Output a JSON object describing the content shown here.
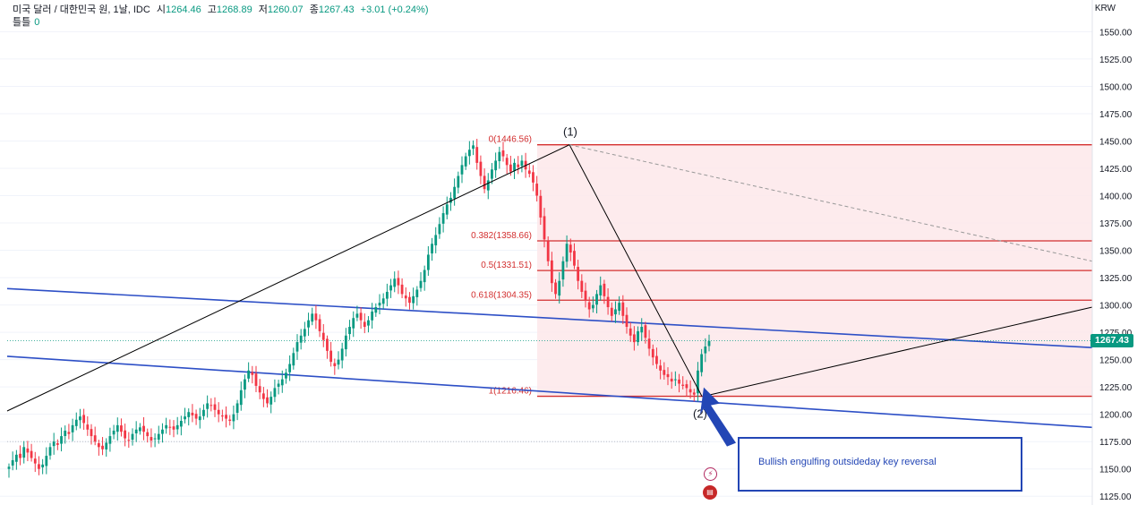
{
  "legend": {
    "symbol": "미국 달러 / 대한민국 원, 1날, IDC",
    "o_label": "시",
    "o_value": "1264.46",
    "h_label": "고",
    "h_value": "1268.89",
    "l_label": "저",
    "l_value": "1260.07",
    "c_label": "종",
    "c_value": "1267.43",
    "change": "+3.01 (+0.24%)",
    "volume_label": "틀틀",
    "volume_value": "0"
  },
  "axis": {
    "currency": "KRW"
  },
  "price_tag": "1267.43",
  "wave_labels": {
    "wave1": "(1)",
    "wave2": "(2)"
  },
  "annotation": {
    "text": "Bullish engulfing outsideday key reversal"
  },
  "event_icons": [
    {
      "name": "lightning-icon",
      "glyph": "⚡",
      "color": "#b2285f"
    },
    {
      "name": "us-flag-icon",
      "glyph": "🇺🇸",
      "color": "#c62828"
    }
  ],
  "colors": {
    "up": "#089981",
    "down": "#f23645",
    "fib_line": "#d32f2f",
    "fib_zone": "#fde7ea",
    "channel": "#2d4fc6",
    "trend": "#000000"
  },
  "chart_data": {
    "type": "candlestick",
    "y_ticks": [
      1125,
      1150,
      1175,
      1200,
      1225,
      1250,
      1275,
      1300,
      1325,
      1350,
      1375,
      1400,
      1425,
      1450,
      1475,
      1500,
      1525,
      1550
    ],
    "ylim": [
      1117,
      1579
    ],
    "last_price": 1267.43,
    "fib_levels": [
      {
        "ratio": "0",
        "price": 1446.56,
        "label": "0(1446.56)"
      },
      {
        "ratio": "0.382",
        "price": 1358.66,
        "label": "0.382(1358.66)"
      },
      {
        "ratio": "0.5",
        "price": 1331.51,
        "label": "0.5(1331.51)"
      },
      {
        "ratio": "0.618",
        "price": 1304.35,
        "label": "0.618(1304.35)"
      },
      {
        "ratio": "1",
        "price": 1216.46,
        "label": "1(1216.46)"
      }
    ],
    "trend_path": [
      1203,
      1446.56,
      1216.46,
      1298
    ],
    "channel_upper": [
      1315,
      1261
    ],
    "channel_lower": [
      1253,
      1188
    ],
    "projection_target": 1340,
    "close_series": [
      1152,
      1158,
      1163,
      1160,
      1170,
      1165,
      1160,
      1155,
      1150,
      1154,
      1162,
      1170,
      1175,
      1172,
      1180,
      1185,
      1182,
      1190,
      1195,
      1198,
      1192,
      1186,
      1180,
      1175,
      1170,
      1168,
      1174,
      1180,
      1185,
      1190,
      1184,
      1178,
      1176,
      1182,
      1186,
      1188,
      1184,
      1180,
      1176,
      1178,
      1182,
      1186,
      1190,
      1188,
      1186,
      1190,
      1194,
      1198,
      1202,
      1199,
      1196,
      1198,
      1204,
      1210,
      1208,
      1204,
      1200,
      1198,
      1196,
      1194,
      1200,
      1210,
      1222,
      1232,
      1240,
      1236,
      1226,
      1220,
      1214,
      1210,
      1216,
      1224,
      1228,
      1232,
      1238,
      1246,
      1256,
      1266,
      1272,
      1278,
      1286,
      1292,
      1286,
      1276,
      1268,
      1258,
      1248,
      1244,
      1250,
      1260,
      1272,
      1280,
      1288,
      1292,
      1286,
      1280,
      1286,
      1294,
      1298,
      1302,
      1306,
      1312,
      1318,
      1324,
      1318,
      1310,
      1306,
      1302,
      1308,
      1314,
      1322,
      1332,
      1346,
      1356,
      1364,
      1374,
      1384,
      1392,
      1398,
      1408,
      1418,
      1428,
      1436,
      1442,
      1446,
      1430,
      1418,
      1406,
      1414,
      1424,
      1432,
      1440,
      1436,
      1428,
      1422,
      1430,
      1426,
      1432,
      1424,
      1420,
      1412,
      1400,
      1380,
      1360,
      1340,
      1320,
      1310,
      1322,
      1340,
      1356,
      1348,
      1336,
      1322,
      1312,
      1304,
      1296,
      1300,
      1310,
      1318,
      1308,
      1298,
      1290,
      1296,
      1302,
      1290,
      1280,
      1272,
      1266,
      1276,
      1280,
      1270,
      1260,
      1252,
      1246,
      1240,
      1236,
      1234,
      1230,
      1232,
      1228,
      1226,
      1224,
      1220,
      1218,
      1240,
      1255,
      1262,
      1267
    ]
  }
}
